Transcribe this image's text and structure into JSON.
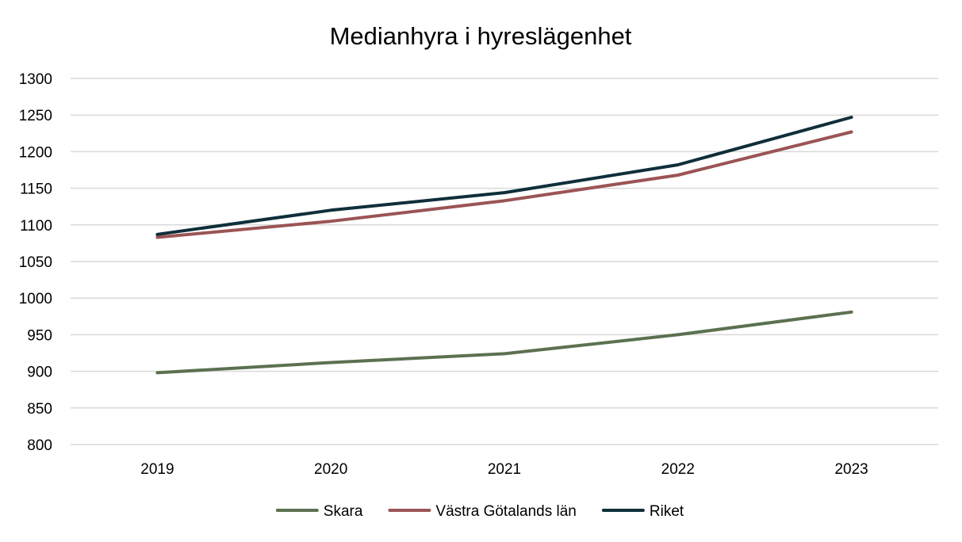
{
  "chart_data": {
    "type": "line",
    "title": "Medianhyra i hyreslägenhet",
    "xlabel": "",
    "ylabel": "",
    "categories": [
      "2019",
      "2020",
      "2021",
      "2022",
      "2023"
    ],
    "ylim": [
      800,
      1300
    ],
    "yticks": [
      800,
      850,
      900,
      950,
      1000,
      1050,
      1100,
      1150,
      1200,
      1250,
      1300
    ],
    "grid": true,
    "legend": "bottom",
    "series": [
      {
        "name": "Skara",
        "color": "#5b7150",
        "values": [
          898,
          912,
          924,
          950,
          981
        ]
      },
      {
        "name": "Västra Götalands län",
        "color": "#9b5455",
        "values": [
          1083,
          1105,
          1133,
          1168,
          1227
        ]
      },
      {
        "name": "Riket",
        "color": "#0f2f3a",
        "values": [
          1087,
          1120,
          1144,
          1182,
          1247
        ]
      }
    ]
  }
}
